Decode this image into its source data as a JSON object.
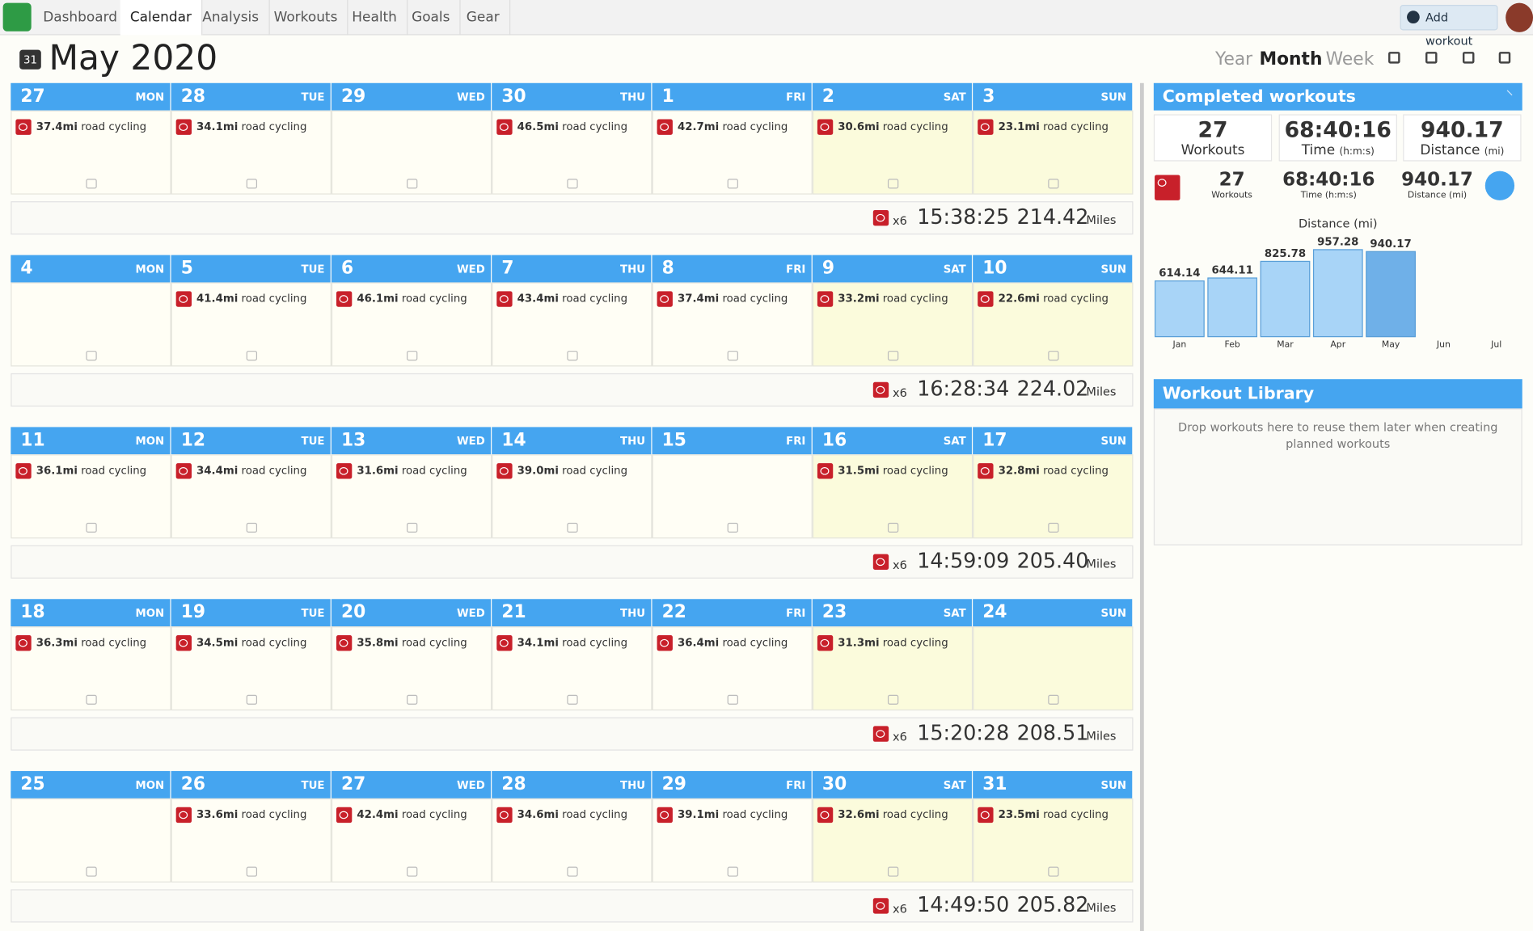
{
  "nav": {
    "items": [
      "Dashboard",
      "Calendar",
      "Analysis",
      "Workouts",
      "Health",
      "Goals",
      "Gear"
    ],
    "add_workout": "Add workout"
  },
  "header": {
    "calendar_icon": "31",
    "title": "May 2020",
    "views": [
      "Year",
      "Month",
      "Week"
    ]
  },
  "weeks": [
    {
      "days": [
        {
          "date": "27",
          "dow": "MON",
          "workout": {
            "distance": "37.4mi",
            "type": "road cycling"
          }
        },
        {
          "date": "28",
          "dow": "TUE",
          "workout": {
            "distance": "34.1mi",
            "type": "road cycling"
          }
        },
        {
          "date": "29",
          "dow": "WED"
        },
        {
          "date": "30",
          "dow": "THU",
          "workout": {
            "distance": "46.5mi",
            "type": "road cycling"
          }
        },
        {
          "date": "1",
          "dow": "FRI",
          "workout": {
            "distance": "42.7mi",
            "type": "road cycling"
          }
        },
        {
          "date": "2",
          "dow": "SAT",
          "workout": {
            "distance": "30.6mi",
            "type": "road cycling"
          }
        },
        {
          "date": "3",
          "dow": "SUN",
          "workout": {
            "distance": "23.1mi",
            "type": "road cycling"
          }
        }
      ],
      "summary": {
        "count": "x6",
        "time": "15:38:25",
        "distance": "214.42",
        "unit": "Miles"
      }
    },
    {
      "days": [
        {
          "date": "4",
          "dow": "MON"
        },
        {
          "date": "5",
          "dow": "TUE",
          "workout": {
            "distance": "41.4mi",
            "type": "road cycling"
          }
        },
        {
          "date": "6",
          "dow": "WED",
          "workout": {
            "distance": "46.1mi",
            "type": "road cycling"
          }
        },
        {
          "date": "7",
          "dow": "THU",
          "workout": {
            "distance": "43.4mi",
            "type": "road cycling"
          }
        },
        {
          "date": "8",
          "dow": "FRI",
          "workout": {
            "distance": "37.4mi",
            "type": "road cycling"
          }
        },
        {
          "date": "9",
          "dow": "SAT",
          "workout": {
            "distance": "33.2mi",
            "type": "road cycling"
          }
        },
        {
          "date": "10",
          "dow": "SUN",
          "workout": {
            "distance": "22.6mi",
            "type": "road cycling"
          }
        }
      ],
      "summary": {
        "count": "x6",
        "time": "16:28:34",
        "distance": "224.02",
        "unit": "Miles"
      }
    },
    {
      "days": [
        {
          "date": "11",
          "dow": "MON",
          "workout": {
            "distance": "36.1mi",
            "type": "road cycling"
          }
        },
        {
          "date": "12",
          "dow": "TUE",
          "workout": {
            "distance": "34.4mi",
            "type": "road cycling"
          }
        },
        {
          "date": "13",
          "dow": "WED",
          "workout": {
            "distance": "31.6mi",
            "type": "road cycling"
          }
        },
        {
          "date": "14",
          "dow": "THU",
          "workout": {
            "distance": "39.0mi",
            "type": "road cycling"
          }
        },
        {
          "date": "15",
          "dow": "FRI"
        },
        {
          "date": "16",
          "dow": "SAT",
          "workout": {
            "distance": "31.5mi",
            "type": "road cycling"
          }
        },
        {
          "date": "17",
          "dow": "SUN",
          "workout": {
            "distance": "32.8mi",
            "type": "road cycling"
          }
        }
      ],
      "summary": {
        "count": "x6",
        "time": "14:59:09",
        "distance": "205.40",
        "unit": "Miles"
      }
    },
    {
      "days": [
        {
          "date": "18",
          "dow": "MON",
          "workout": {
            "distance": "36.3mi",
            "type": "road cycling"
          }
        },
        {
          "date": "19",
          "dow": "TUE",
          "workout": {
            "distance": "34.5mi",
            "type": "road cycling"
          }
        },
        {
          "date": "20",
          "dow": "WED",
          "workout": {
            "distance": "35.8mi",
            "type": "road cycling"
          }
        },
        {
          "date": "21",
          "dow": "THU",
          "workout": {
            "distance": "34.1mi",
            "type": "road cycling"
          }
        },
        {
          "date": "22",
          "dow": "FRI",
          "workout": {
            "distance": "36.4mi",
            "type": "road cycling"
          }
        },
        {
          "date": "23",
          "dow": "SAT",
          "workout": {
            "distance": "31.3mi",
            "type": "road cycling"
          }
        },
        {
          "date": "24",
          "dow": "SUN"
        }
      ],
      "summary": {
        "count": "x6",
        "time": "15:20:28",
        "distance": "208.51",
        "unit": "Miles"
      }
    },
    {
      "days": [
        {
          "date": "25",
          "dow": "MON"
        },
        {
          "date": "26",
          "dow": "TUE",
          "workout": {
            "distance": "33.6mi",
            "type": "road cycling"
          }
        },
        {
          "date": "27",
          "dow": "WED",
          "workout": {
            "distance": "42.4mi",
            "type": "road cycling"
          }
        },
        {
          "date": "28",
          "dow": "THU",
          "workout": {
            "distance": "34.6mi",
            "type": "road cycling"
          }
        },
        {
          "date": "29",
          "dow": "FRI",
          "workout": {
            "distance": "39.1mi",
            "type": "road cycling"
          }
        },
        {
          "date": "30",
          "dow": "SAT",
          "workout": {
            "distance": "32.6mi",
            "type": "road cycling"
          }
        },
        {
          "date": "31",
          "dow": "SUN",
          "workout": {
            "distance": "23.5mi",
            "type": "road cycling"
          }
        }
      ],
      "summary": {
        "count": "x6",
        "time": "14:49:50",
        "distance": "205.82",
        "unit": "Miles"
      }
    }
  ],
  "completed": {
    "title": "Completed workouts",
    "totals": [
      {
        "value": "27",
        "label": "Workouts"
      },
      {
        "value": "68:40:16",
        "label": "Time",
        "unit": "(h:m:s)"
      },
      {
        "value": "940.17",
        "label": "Distance",
        "unit": "(mi)"
      }
    ],
    "cycling": [
      {
        "value": "27",
        "label": "Workouts"
      },
      {
        "value": "68:40:16",
        "label": "Time (h:m:s)"
      },
      {
        "value": "940.17",
        "label": "Distance (mi)"
      }
    ],
    "chart": {
      "type": "bar",
      "title": "Distance (mi)",
      "categories": [
        "Jan",
        "Feb",
        "Mar",
        "Apr",
        "May",
        "Jun",
        "Jul"
      ],
      "values": [
        614.14,
        644.11,
        825.78,
        957.28,
        940.17,
        null,
        null
      ],
      "color": "#a8d4f7",
      "highlight_color": "#6fb0e8"
    }
  },
  "library": {
    "title": "Workout Library",
    "text": "Drop workouts here to reuse them later when creating planned workouts"
  }
}
